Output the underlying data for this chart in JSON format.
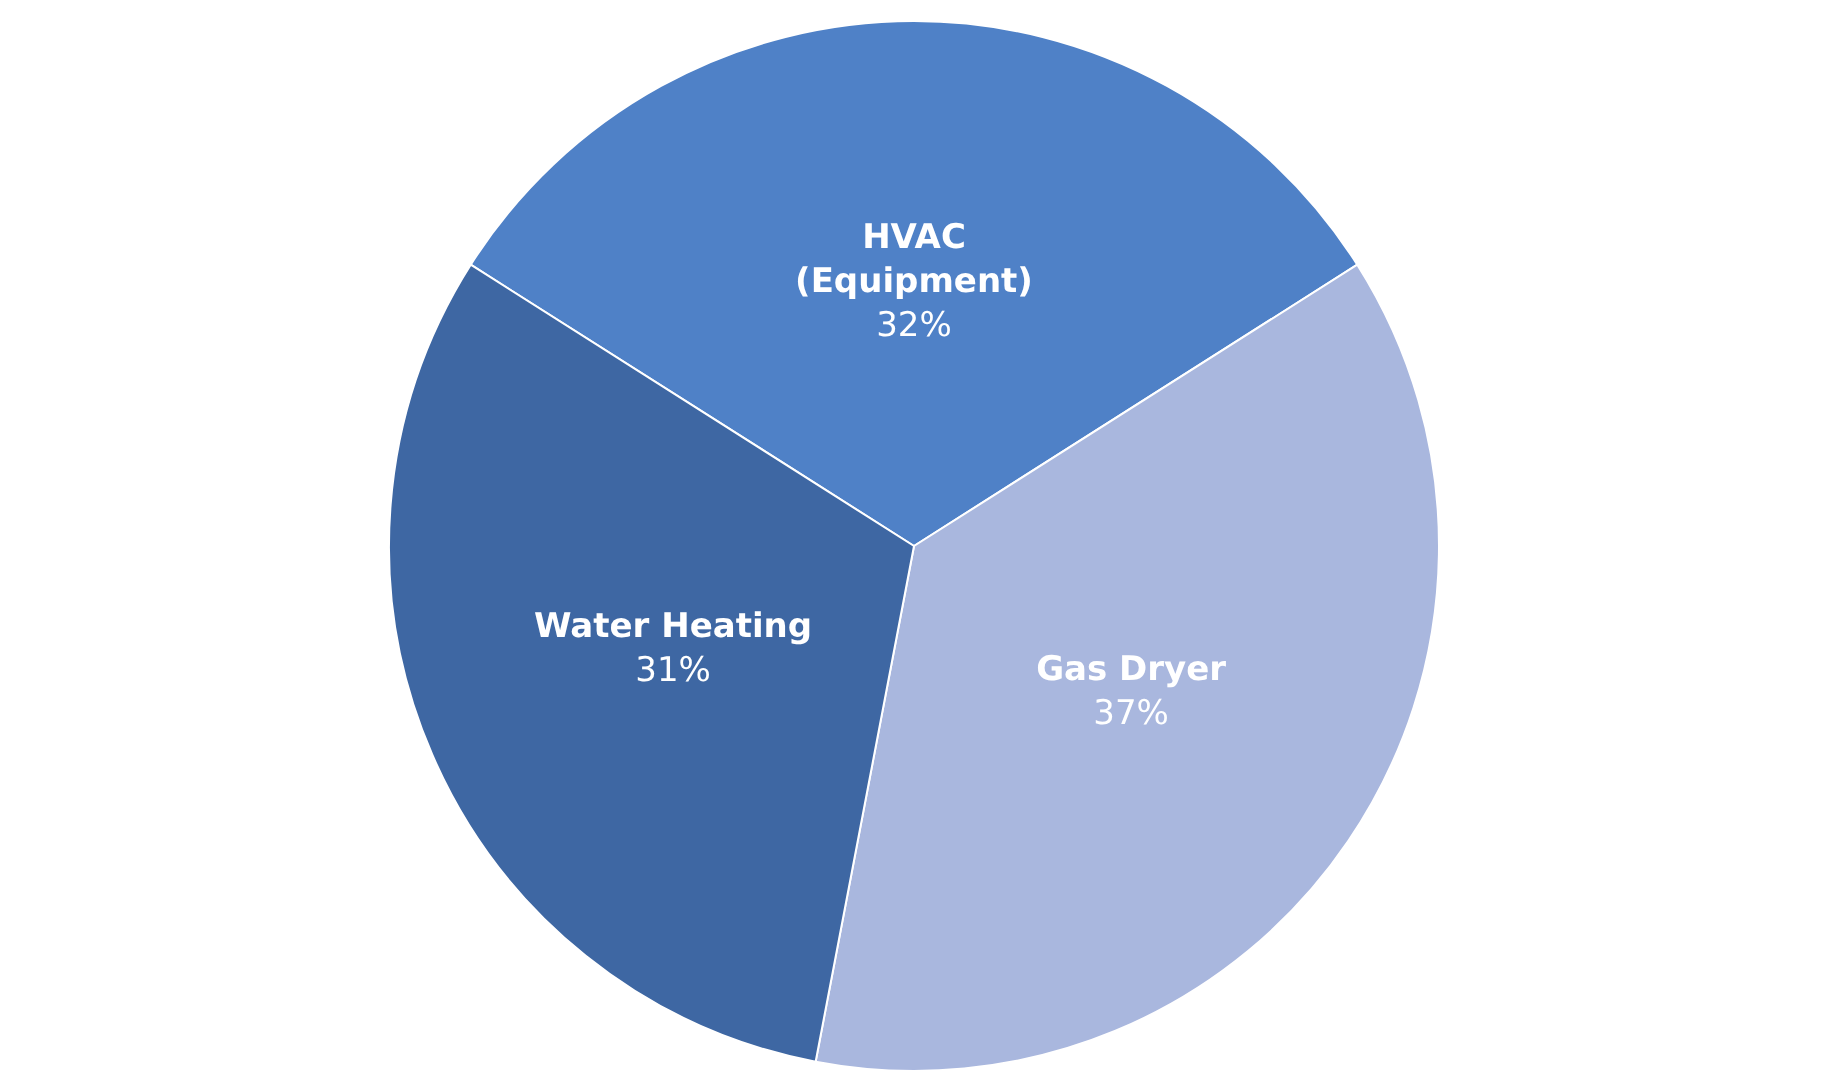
{
  "chart_data": {
    "type": "pie",
    "categories": [
      "HVAC (Equipment)",
      "Gas Dryer",
      "Water Heating"
    ],
    "values": [
      32,
      37,
      31
    ],
    "colors": [
      "#4f81c7",
      "#a9b7de",
      "#3e67a3"
    ],
    "value_labels": [
      "32%",
      "37%",
      "31%"
    ],
    "legend": false
  }
}
